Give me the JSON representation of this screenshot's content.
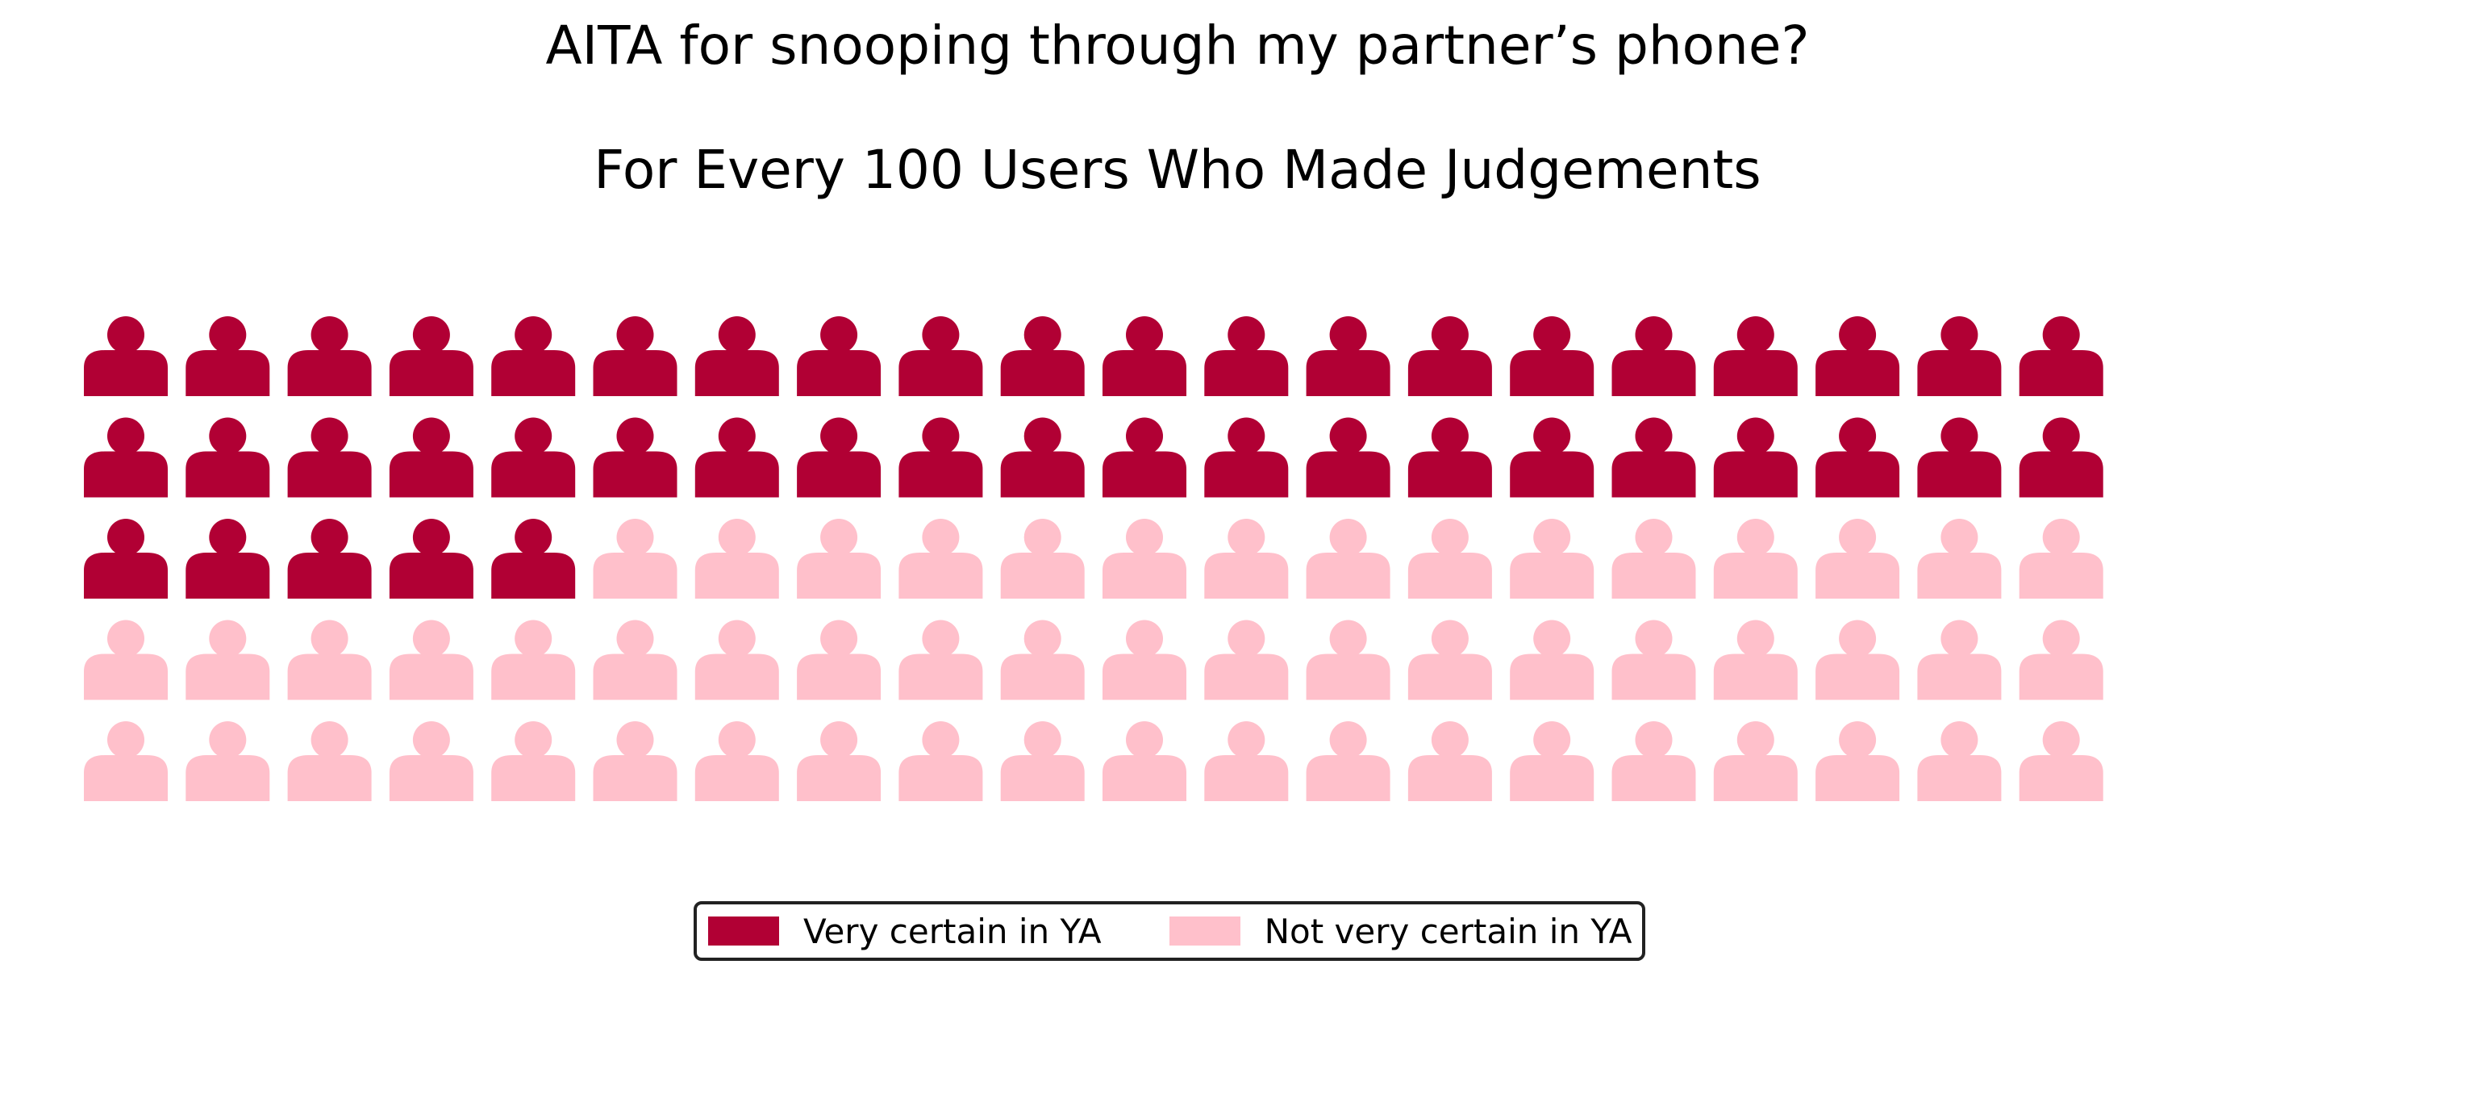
{
  "chart_data": {
    "type": "waffle",
    "title": "AITA for snooping through my partner’s phone?",
    "subtitle": "For Every 100 Users Who Made Judgements",
    "total": 100,
    "rows": 5,
    "columns": 20,
    "icon": "person-icon",
    "series": [
      {
        "name": "Very certain in YA",
        "value": 45,
        "color": "#b10034"
      },
      {
        "name": "Not very certain in YA",
        "value": 55,
        "color": "#ffc0cb"
      }
    ],
    "legend_position": "bottom-center"
  }
}
